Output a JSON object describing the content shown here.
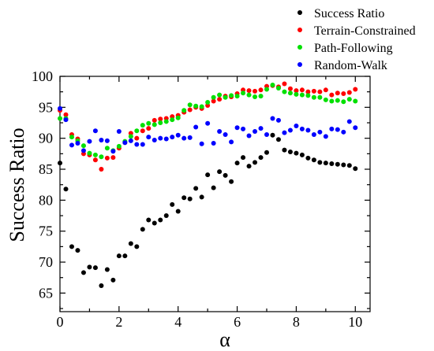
{
  "chart_data": {
    "type": "scatter",
    "title": "",
    "xlabel": "α",
    "ylabel": "Success Ratio",
    "xlim": [
      0,
      10.5
    ],
    "ylim": [
      62,
      100
    ],
    "xticks": [
      0,
      2,
      4,
      6,
      8,
      10
    ],
    "yticks": [
      65,
      70,
      75,
      80,
      85,
      90,
      95,
      100
    ],
    "grid": false,
    "legend_position": "top-right",
    "series": [
      {
        "name": "Success Ratio",
        "color": "#000000",
        "x": [
          0.0,
          0.2,
          0.4,
          0.6,
          0.8,
          1.0,
          1.2,
          1.4,
          1.6,
          1.8,
          2.0,
          2.2,
          2.4,
          2.6,
          2.8,
          3.0,
          3.2,
          3.4,
          3.6,
          3.8,
          4.0,
          4.2,
          4.4,
          4.6,
          4.8,
          5.0,
          5.2,
          5.4,
          5.6,
          5.8,
          6.0,
          6.2,
          6.4,
          6.6,
          6.8,
          7.0,
          7.2,
          7.4,
          7.6,
          7.8,
          8.0,
          8.2,
          8.4,
          8.6,
          8.8,
          9.0,
          9.2,
          9.4,
          9.6,
          9.8,
          10.0
        ],
        "y": [
          86.0,
          81.8,
          72.5,
          71.9,
          68.3,
          69.2,
          69.1,
          66.2,
          68.8,
          67.1,
          71.0,
          71.0,
          73.0,
          72.5,
          75.3,
          76.8,
          76.3,
          76.8,
          77.5,
          79.3,
          78.2,
          80.4,
          80.2,
          81.9,
          80.5,
          84.1,
          82.0,
          84.6,
          84.0,
          83.0,
          86.0,
          86.9,
          85.5,
          86.1,
          86.9,
          87.7,
          90.5,
          89.8,
          88.1,
          87.8,
          87.6,
          87.3,
          86.8,
          86.5,
          86.1,
          86.0,
          85.9,
          85.8,
          85.7,
          85.6,
          85.1
        ]
      },
      {
        "name": "Terrain-Constrained",
        "color": "#ff0000",
        "x": [
          0.0,
          0.2,
          0.4,
          0.6,
          0.8,
          1.0,
          1.2,
          1.4,
          1.6,
          1.8,
          2.0,
          2.2,
          2.4,
          2.6,
          2.8,
          3.0,
          3.2,
          3.4,
          3.6,
          3.8,
          4.0,
          4.2,
          4.4,
          4.6,
          4.8,
          5.0,
          5.2,
          5.4,
          5.6,
          5.8,
          6.0,
          6.2,
          6.4,
          6.6,
          6.8,
          7.0,
          7.2,
          7.4,
          7.6,
          7.8,
          8.0,
          8.2,
          8.4,
          8.6,
          8.8,
          9.0,
          9.2,
          9.4,
          9.6,
          9.8,
          10.0
        ],
        "y": [
          94.5,
          93.8,
          90.6,
          89.9,
          87.5,
          87.3,
          86.5,
          85.0,
          86.8,
          86.9,
          88.4,
          89.3,
          90.8,
          90.0,
          91.2,
          91.6,
          92.9,
          93.1,
          93.2,
          93.5,
          93.7,
          94.2,
          94.6,
          95.0,
          94.8,
          95.3,
          96.0,
          96.3,
          96.8,
          96.7,
          97.2,
          97.8,
          97.7,
          97.6,
          97.8,
          98.4,
          98.5,
          98.3,
          98.8,
          98.0,
          97.7,
          97.8,
          97.5,
          97.6,
          97.5,
          97.8,
          97.0,
          97.3,
          97.2,
          97.4,
          97.9
        ]
      },
      {
        "name": "Path-Following",
        "color": "#00e000",
        "x": [
          0.0,
          0.2,
          0.4,
          0.6,
          0.8,
          1.0,
          1.2,
          1.4,
          1.6,
          1.8,
          2.0,
          2.2,
          2.4,
          2.6,
          2.8,
          3.0,
          3.2,
          3.4,
          3.6,
          3.8,
          4.0,
          4.2,
          4.4,
          4.6,
          4.8,
          5.0,
          5.2,
          5.4,
          5.6,
          5.8,
          6.0,
          6.2,
          6.4,
          6.6,
          6.8,
          7.0,
          7.2,
          7.4,
          7.6,
          7.8,
          8.0,
          8.2,
          8.4,
          8.6,
          8.8,
          9.0,
          9.2,
          9.4,
          9.6,
          9.8,
          10.0
        ],
        "y": [
          93.2,
          93.2,
          90.2,
          89.6,
          88.8,
          87.6,
          87.3,
          87.0,
          88.4,
          88.0,
          88.7,
          89.5,
          90.3,
          91.2,
          92.1,
          92.4,
          92.2,
          92.5,
          92.7,
          93.0,
          93.3,
          94.5,
          95.4,
          95.2,
          95.1,
          95.8,
          96.6,
          97.0,
          96.6,
          96.9,
          96.8,
          97.3,
          97.0,
          96.7,
          96.8,
          97.9,
          98.6,
          98.1,
          97.5,
          97.3,
          97.1,
          97.0,
          96.9,
          96.6,
          96.6,
          96.2,
          96.0,
          96.1,
          95.9,
          96.3,
          96.0
        ]
      },
      {
        "name": "Random-Walk",
        "color": "#0000ff",
        "x": [
          0.0,
          0.2,
          0.4,
          0.6,
          0.8,
          1.0,
          1.2,
          1.4,
          1.6,
          1.8,
          2.0,
          2.2,
          2.4,
          2.6,
          2.8,
          3.0,
          3.2,
          3.4,
          3.6,
          3.8,
          4.0,
          4.2,
          4.4,
          4.6,
          4.8,
          5.0,
          5.2,
          5.4,
          5.6,
          5.8,
          6.0,
          6.2,
          6.4,
          6.6,
          6.8,
          7.0,
          7.2,
          7.4,
          7.6,
          7.8,
          8.0,
          8.2,
          8.4,
          8.6,
          8.8,
          9.0,
          9.2,
          9.4,
          9.6,
          9.8,
          10.0
        ],
        "y": [
          94.8,
          93.0,
          88.9,
          89.2,
          88.0,
          89.5,
          91.2,
          89.7,
          89.6,
          87.9,
          91.1,
          89.3,
          89.6,
          89.0,
          89.0,
          90.2,
          89.7,
          90.0,
          89.9,
          90.2,
          90.5,
          90.0,
          90.1,
          91.8,
          89.1,
          92.4,
          89.2,
          91.1,
          90.6,
          89.4,
          91.7,
          91.5,
          90.4,
          91.1,
          91.6,
          90.6,
          93.2,
          92.9,
          90.9,
          91.3,
          92.0,
          91.5,
          91.3,
          90.6,
          91.0,
          90.3,
          91.5,
          91.4,
          91.0,
          92.7,
          91.7
        ]
      }
    ]
  }
}
